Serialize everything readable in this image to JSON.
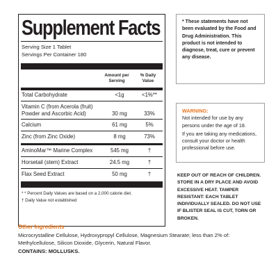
{
  "facts": {
    "title": "Supplement Facts",
    "serving_size": "Serving Size 1 Tablet",
    "servings_per_container": "Servings Per Container 180",
    "col_amount": "Amount per Serving",
    "col_dv": "% Daily Value",
    "rows": [
      {
        "name": "Total Carbohydrate",
        "amount": "<1g",
        "dv": "<1%**"
      },
      {
        "name": "Vitamin C (from Acerola (fruit)",
        "name2": "Powder and Ascorbic Acid)",
        "amount": "30 mg",
        "dv": "33%"
      },
      {
        "name": "Calcium",
        "amount": "61 mg",
        "dv": "5%"
      },
      {
        "name": "Zinc (from Zinc Oxide)",
        "amount": "8 mg",
        "dv": "73%"
      },
      {
        "name": "AminoMar™ Marine Complex",
        "amount": "545 mg",
        "dv": "†"
      },
      {
        "name": "Horsetail (stem) Extract",
        "amount": "24.5 mg",
        "dv": "†"
      },
      {
        "name": "Flax Seed Extract",
        "amount": "50 mg",
        "dv": "†"
      }
    ],
    "footnote1": "* * Percent Daily Values are based on a 2,000 calorie diet.",
    "footnote2": "† Daily Value not established"
  },
  "disclaimer": "* These statements have not been evaluated by the Food and Drug Administration. This product is not intended to diagnose, treat, cure or prevent any disease.",
  "warning": {
    "title": "WARNING:",
    "p1": "Not intended for use by any persons under the age of 18.",
    "p2": "If you are taking any medications, consult your doctor or health professional before use."
  },
  "keep": "KEEP OUT OF REACH OF CHILDREN. STORE IN A DRY PLACE AND AVOID EXCESSIVE HEAT. TAMPER RESISTANT: EACH TABLET INDIVIDUALLY SEALED. DO NOT USE IF BLISTER SEAL IS CUT, TORN OR BROKEN.",
  "other": {
    "title": "Other Ingredients",
    "text": "Microcrystalline Cellulose, Hydroxypropyl Cellulose, Magnesium Stearate; less than 2% of: Methylcellulose, Silicon Dioxide, Glycerin, Natural Flavor.",
    "contains": "CONTAINS: MOLLUSKS."
  }
}
